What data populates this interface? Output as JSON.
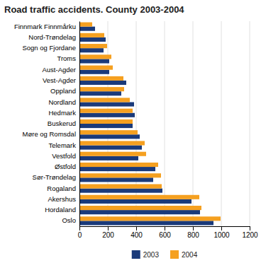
{
  "chart_data": {
    "type": "bar",
    "orientation": "horizontal",
    "title": "Road traffic accidents. County 2003-2004",
    "categories": [
      "Finnmark Finnmårku",
      "Nord-Trøndelag",
      "Sogn og Fjordane",
      "Troms",
      "Aust-Agder",
      "Vest-Agder",
      "Oppland",
      "Nordland",
      "Hedmark",
      "Buskerud",
      "Møre og Romsdal",
      "Telemark",
      "Vestfold",
      "Østfold",
      "Sør-Trøndelag",
      "Rogaland",
      "Akershus",
      "Hordaland",
      "Oslo"
    ],
    "series": [
      {
        "name": "2003",
        "color": "#1a3a7a",
        "values": [
          110,
          185,
          170,
          210,
          210,
          330,
          295,
          385,
          390,
          375,
          425,
          440,
          415,
          535,
          520,
          585,
          790,
          850,
          945
        ]
      },
      {
        "name": "2004",
        "color": "#f5a020",
        "values": [
          90,
          175,
          195,
          225,
          235,
          310,
          315,
          355,
          375,
          375,
          410,
          460,
          470,
          555,
          575,
          580,
          845,
          860,
          995
        ]
      }
    ],
    "xlim": [
      0,
      1200
    ],
    "xticks": [
      0,
      200,
      400,
      600,
      800,
      1000,
      1200
    ],
    "grid": true,
    "legend": "bottom"
  }
}
